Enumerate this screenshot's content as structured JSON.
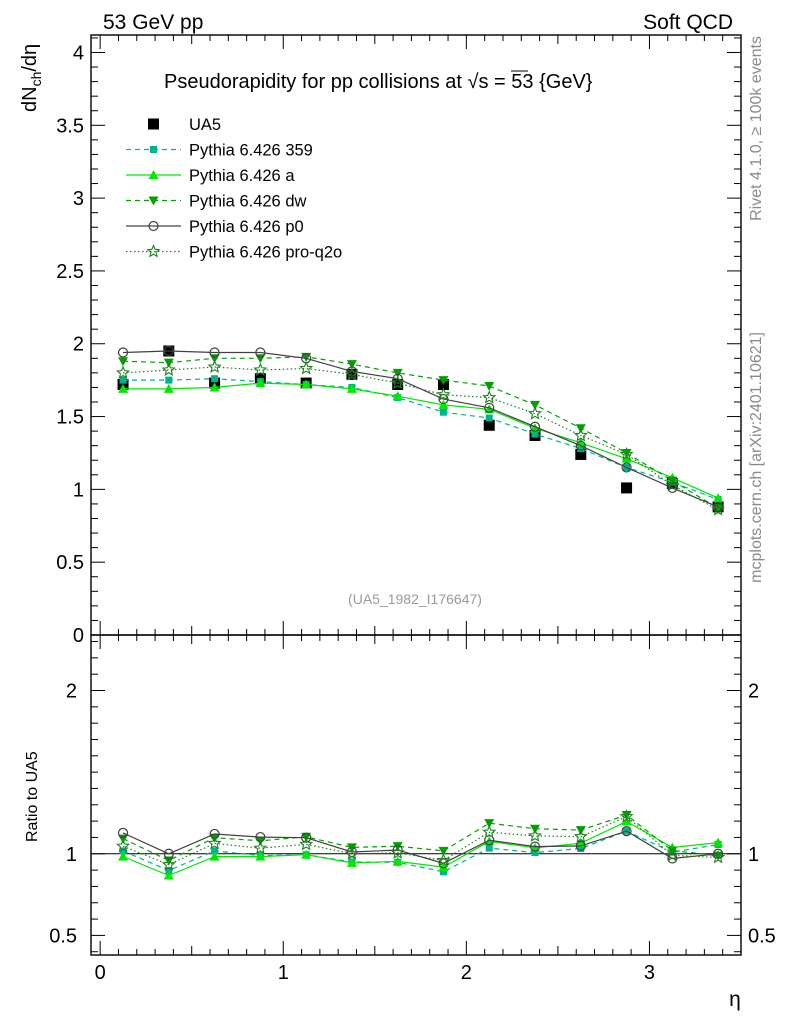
{
  "header": {
    "left": "53 GeV pp",
    "right": "Soft QCD"
  },
  "side_labels": {
    "rivet": "Rivet 4.1.0, ≥ 100k events",
    "mcplots": "mcplots.cern.ch [arXiv:2401.10621]"
  },
  "chart_data": [
    {
      "type": "scatter",
      "title_prefix": "Pseudorapidity for pp collisions at ",
      "title_sqrt": "√s",
      "title_suffix": " = 53 {GeV}",
      "ylabel": "dN",
      "ylabel_sub": "ch",
      "ylabel_tail": "/dη",
      "watermark": "(UA5_1982_I176647)",
      "xlim": [
        -0.05,
        3.5
      ],
      "ylim": [
        0,
        4.12
      ],
      "yticks": [
        0,
        0.5,
        1,
        1.5,
        2,
        2.5,
        3,
        3.5,
        4
      ],
      "ytick_labels": [
        "0",
        "0.5",
        "1",
        "1.5",
        "2",
        "2.5",
        "3",
        "3.5",
        "4"
      ],
      "x": [
        0.125,
        0.375,
        0.625,
        0.875,
        1.125,
        1.375,
        1.625,
        1.875,
        2.125,
        2.375,
        2.625,
        2.875,
        3.125,
        3.375
      ],
      "series": [
        {
          "name": "UA5",
          "color": "#000000",
          "marker": "square",
          "line": "none",
          "values": [
            1.72,
            1.95,
            1.73,
            1.76,
            1.73,
            1.79,
            1.72,
            1.72,
            1.44,
            1.37,
            1.24,
            1.01,
            1.04,
            0.88
          ]
        },
        {
          "name": "Pythia 6.426 359",
          "color": "#00b38f",
          "marker": "smallsquare",
          "line": "dashed",
          "values": [
            1.75,
            1.75,
            1.76,
            1.74,
            1.72,
            1.7,
            1.63,
            1.53,
            1.49,
            1.38,
            1.28,
            1.15,
            1.05,
            0.93
          ]
        },
        {
          "name": "Pythia 6.426 a",
          "color": "#00e800",
          "marker": "triangle-up",
          "line": "solid",
          "values": [
            1.69,
            1.69,
            1.7,
            1.73,
            1.72,
            1.69,
            1.64,
            1.58,
            1.55,
            1.42,
            1.32,
            1.21,
            1.08,
            0.94
          ]
        },
        {
          "name": "Pythia 6.426 dw",
          "color": "#00a000",
          "marker": "triangle-down",
          "line": "dashed",
          "values": [
            1.88,
            1.87,
            1.9,
            1.9,
            1.91,
            1.86,
            1.8,
            1.75,
            1.71,
            1.58,
            1.42,
            1.25,
            1.06,
            0.87
          ]
        },
        {
          "name": "Pythia 6.426 p0",
          "color": "#404040",
          "marker": "circle-open",
          "line": "solid",
          "values": [
            1.94,
            1.95,
            1.94,
            1.94,
            1.9,
            1.81,
            1.76,
            1.62,
            1.56,
            1.43,
            1.3,
            1.15,
            1.01,
            0.88
          ]
        },
        {
          "name": "Pythia 6.426 pro-q2o",
          "color": "#208020",
          "marker": "star",
          "line": "dotted",
          "values": [
            1.8,
            1.82,
            1.84,
            1.82,
            1.83,
            1.79,
            1.73,
            1.65,
            1.63,
            1.52,
            1.37,
            1.24,
            1.03,
            0.86
          ]
        }
      ]
    },
    {
      "type": "scatter",
      "ylabel": "Ratio to UA5",
      "xlabel": "η",
      "xlim": [
        -0.05,
        3.5
      ],
      "ylim": [
        0.38,
        2.34
      ],
      "xticks": [
        0,
        1,
        2,
        3
      ],
      "xtick_labels": [
        "0",
        "1",
        "2",
        "3"
      ],
      "yticks": [
        0.5,
        1,
        2
      ],
      "ytick_labels": [
        "0.5",
        "1",
        "2"
      ],
      "reference_line": 1
    }
  ]
}
